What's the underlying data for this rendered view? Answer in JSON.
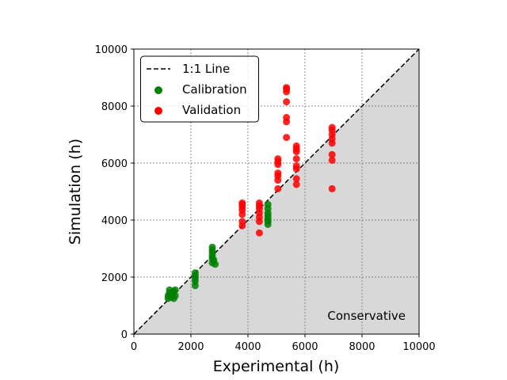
{
  "chart_data": {
    "type": "scatter",
    "xlabel": "Experimental (h)",
    "ylabel": "Simulation (h)",
    "xlim": [
      0,
      10000
    ],
    "ylim": [
      0,
      10000
    ],
    "xticks": [
      "0",
      "2000",
      "4000",
      "6000",
      "8000",
      "10000"
    ],
    "yticks": [
      "0",
      "2000",
      "4000",
      "6000",
      "8000",
      "10000"
    ],
    "grid": true,
    "legend_position": "top-left",
    "reference_line": {
      "label": "1:1 Line",
      "style": "dashed",
      "color": "#000000"
    },
    "shaded_region": {
      "label": "Conservative",
      "color": "#d8d8d8",
      "description": "below 1:1 line"
    },
    "series": [
      {
        "name": "Calibration",
        "color": "#008000",
        "points": [
          [
            1200,
            1250
          ],
          [
            1200,
            1350
          ],
          [
            1250,
            1450
          ],
          [
            1250,
            1550
          ],
          [
            1300,
            1300
          ],
          [
            1350,
            1400
          ],
          [
            1400,
            1500
          ],
          [
            1400,
            1250
          ],
          [
            1450,
            1350
          ],
          [
            1450,
            1550
          ],
          [
            2150,
            1700
          ],
          [
            2150,
            1850
          ],
          [
            2150,
            1950
          ],
          [
            2150,
            2050
          ],
          [
            2150,
            2150
          ],
          [
            2750,
            2500
          ],
          [
            2750,
            2650
          ],
          [
            2750,
            2750
          ],
          [
            2750,
            2850
          ],
          [
            2750,
            2950
          ],
          [
            2750,
            3050
          ],
          [
            2800,
            2600
          ],
          [
            2850,
            2450
          ],
          [
            4700,
            3850
          ],
          [
            4700,
            3950
          ],
          [
            4700,
            4050
          ],
          [
            4700,
            4150
          ],
          [
            4700,
            4250
          ],
          [
            4700,
            4400
          ],
          [
            4700,
            4550
          ]
        ]
      },
      {
        "name": "Validation",
        "color": "#ff0000",
        "points": [
          [
            3800,
            3800
          ],
          [
            3800,
            3950
          ],
          [
            3800,
            4200
          ],
          [
            3800,
            4350
          ],
          [
            3800,
            4450
          ],
          [
            3800,
            4550
          ],
          [
            3800,
            4600
          ],
          [
            4400,
            3550
          ],
          [
            4400,
            3950
          ],
          [
            4400,
            4100
          ],
          [
            4400,
            4250
          ],
          [
            4400,
            4400
          ],
          [
            4400,
            4500
          ],
          [
            4400,
            4600
          ],
          [
            5050,
            5100
          ],
          [
            5050,
            5400
          ],
          [
            5050,
            5550
          ],
          [
            5050,
            5650
          ],
          [
            5050,
            5950
          ],
          [
            5050,
            6050
          ],
          [
            5050,
            6150
          ],
          [
            5350,
            6900
          ],
          [
            5350,
            7450
          ],
          [
            5350,
            7600
          ],
          [
            5350,
            8150
          ],
          [
            5350,
            8500
          ],
          [
            5350,
            8600
          ],
          [
            5350,
            8650
          ],
          [
            5700,
            5250
          ],
          [
            5700,
            5450
          ],
          [
            5700,
            5800
          ],
          [
            5700,
            5900
          ],
          [
            5700,
            6150
          ],
          [
            5700,
            6400
          ],
          [
            5700,
            6500
          ],
          [
            5700,
            6600
          ],
          [
            6950,
            5100
          ],
          [
            6950,
            6100
          ],
          [
            6950,
            6300
          ],
          [
            6950,
            6700
          ],
          [
            6950,
            6850
          ],
          [
            6950,
            7000
          ],
          [
            6950,
            7150
          ],
          [
            6950,
            7250
          ]
        ]
      }
    ]
  }
}
